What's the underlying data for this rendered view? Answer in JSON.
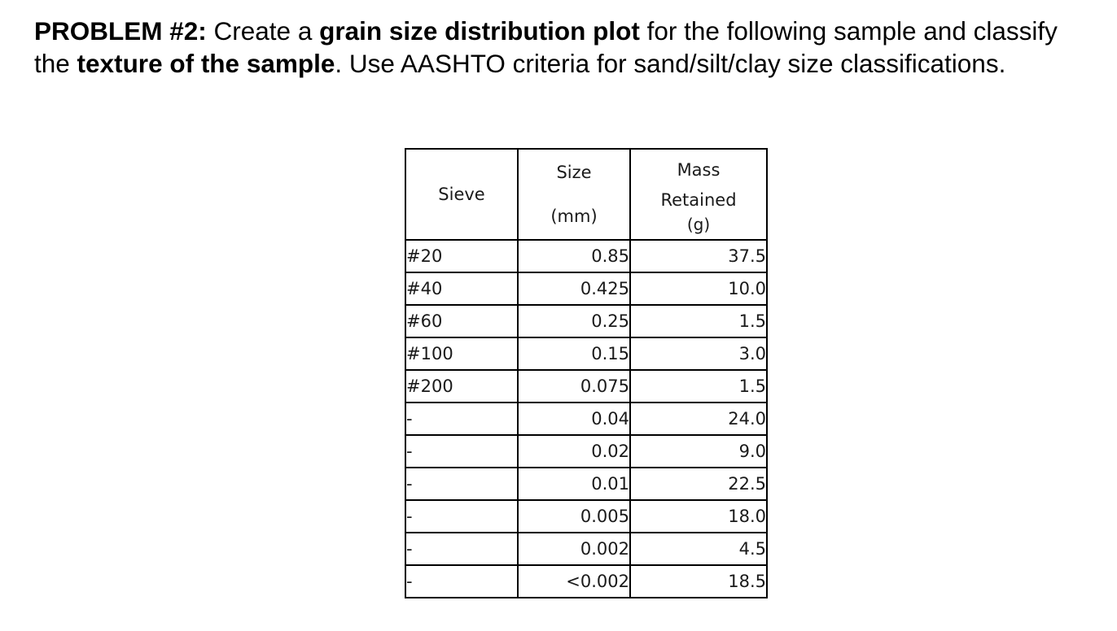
{
  "problem": {
    "label": "PROBLEM #2:",
    "text_1": " Create a ",
    "bold_1": "grain size distribution plot",
    "text_2": " for the following sample and classify the ",
    "bold_2": "texture of the sample",
    "text_3": ". Use AASHTO criteria for sand/silt/clay size classifications."
  },
  "table": {
    "headers": {
      "sieve": "Sieve",
      "size_line1": "Size",
      "size_line2": "(mm)",
      "mass_line1": "Mass",
      "mass_line2": "Retained",
      "mass_line3": "(g)"
    },
    "rows": [
      {
        "sieve": "#20",
        "size": "0.85",
        "mass": "37.5"
      },
      {
        "sieve": "#40",
        "size": "0.425",
        "mass": "10.0"
      },
      {
        "sieve": "#60",
        "size": "0.25",
        "mass": "1.5"
      },
      {
        "sieve": "#100",
        "size": "0.15",
        "mass": "3.0"
      },
      {
        "sieve": "#200",
        "size": "0.075",
        "mass": "1.5"
      },
      {
        "sieve": "-",
        "size": "0.04",
        "mass": "24.0"
      },
      {
        "sieve": "-",
        "size": "0.02",
        "mass": "9.0"
      },
      {
        "sieve": "-",
        "size": "0.01",
        "mass": "22.5"
      },
      {
        "sieve": "-",
        "size": "0.005",
        "mass": "18.0"
      },
      {
        "sieve": "-",
        "size": "0.002",
        "mass": "4.5"
      },
      {
        "sieve": "-",
        "size": "<0.002",
        "mass": "18.5"
      }
    ]
  }
}
